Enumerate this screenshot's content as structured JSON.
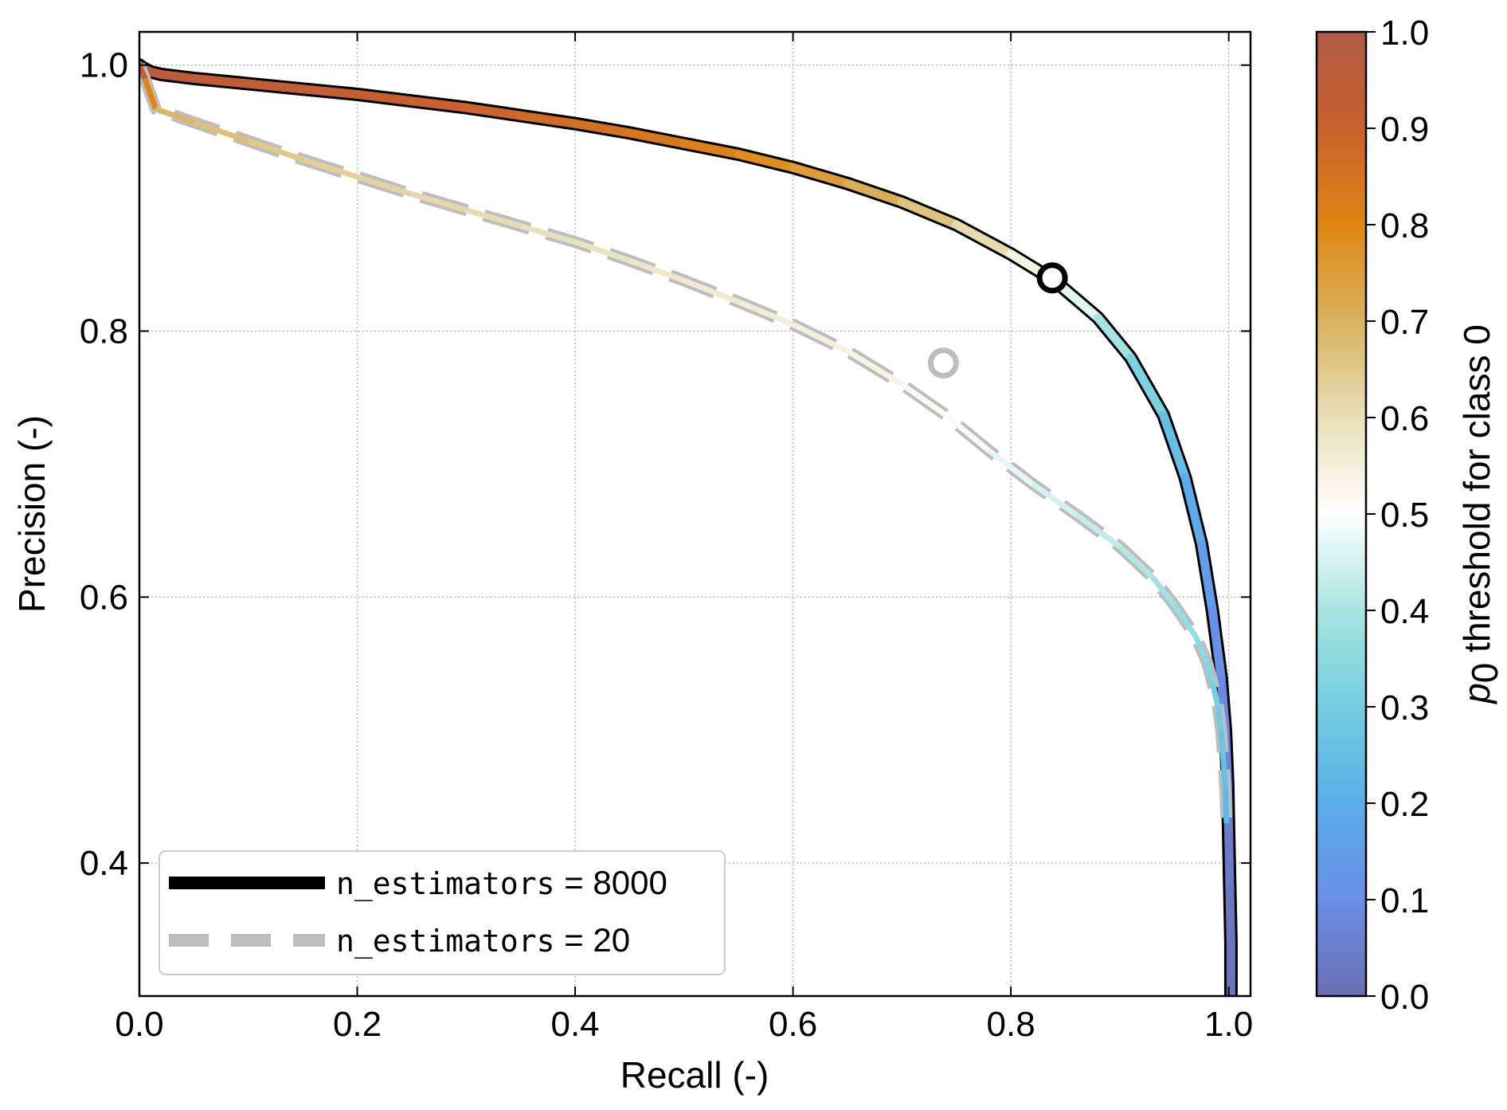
{
  "chart_data": {
    "type": "line",
    "xlabel": "Recall (-)",
    "ylabel": "Precision (-)",
    "xlim": [
      0.0,
      1.02
    ],
    "ylim": [
      0.3,
      1.025
    ],
    "grid": true,
    "x_ticks": [
      "0.0",
      "0.2",
      "0.4",
      "0.6",
      "0.8",
      "1.0"
    ],
    "y_ticks": [
      "0.4",
      "0.6",
      "0.8",
      "1.0"
    ],
    "legend": {
      "placement": "lower-left",
      "entries": [
        {
          "mono": "n_estimators",
          "suffix": " = 8000",
          "style": "solid",
          "color": "#000000"
        },
        {
          "mono": "n_estimators",
          "suffix": " = 20",
          "style": "dashed",
          "color": "#bdbdbd"
        }
      ]
    },
    "colorbar": {
      "label_p": "p",
      "label_sub": "0",
      "label_rest": " threshold for class 0",
      "ticks": [
        "0.0",
        "0.1",
        "0.2",
        "0.3",
        "0.4",
        "0.5",
        "0.6",
        "0.7",
        "0.8",
        "0.9",
        "1.0"
      ],
      "colors": [
        "#6a70b0",
        "#6a8de8",
        "#5aaee8",
        "#72cde0",
        "#a8e4e0",
        "#ffffff",
        "#e8dfb8",
        "#d9b25f",
        "#df8614",
        "#c9602e",
        "#b05a44"
      ]
    },
    "series": [
      {
        "name": "n_estimators = 8000",
        "style": "solid",
        "x": [
          0.0,
          0.003,
          0.01,
          0.02,
          0.05,
          0.1,
          0.15,
          0.2,
          0.25,
          0.3,
          0.35,
          0.4,
          0.45,
          0.5,
          0.55,
          0.6,
          0.65,
          0.7,
          0.75,
          0.8,
          0.84,
          0.88,
          0.91,
          0.94,
          0.96,
          0.975,
          0.985,
          0.993,
          0.997,
          0.999,
          1.0,
          1.001,
          1.002,
          1.002
        ],
        "y": [
          1.0,
          0.998,
          0.995,
          0.993,
          0.99,
          0.986,
          0.982,
          0.978,
          0.973,
          0.968,
          0.962,
          0.956,
          0.949,
          0.941,
          0.933,
          0.923,
          0.911,
          0.897,
          0.88,
          0.858,
          0.838,
          0.81,
          0.78,
          0.737,
          0.69,
          0.64,
          0.59,
          0.54,
          0.5,
          0.46,
          0.42,
          0.38,
          0.34,
          0.3
        ],
        "threshold": [
          1.0,
          0.99,
          0.97,
          0.96,
          0.95,
          0.94,
          0.93,
          0.92,
          0.91,
          0.895,
          0.88,
          0.865,
          0.85,
          0.83,
          0.8,
          0.77,
          0.73,
          0.69,
          0.64,
          0.58,
          0.5,
          0.43,
          0.36,
          0.28,
          0.22,
          0.17,
          0.13,
          0.1,
          0.08,
          0.06,
          0.04,
          0.03,
          0.02,
          0.01
        ]
      },
      {
        "name": "n_estimators = 20",
        "style": "dashed",
        "x": [
          0.0,
          0.005,
          0.015,
          0.05,
          0.1,
          0.15,
          0.2,
          0.25,
          0.3,
          0.35,
          0.4,
          0.45,
          0.5,
          0.55,
          0.6,
          0.65,
          0.7,
          0.74,
          0.78,
          0.82,
          0.86,
          0.9,
          0.93,
          0.95,
          0.97,
          0.98,
          0.985,
          0.99,
          0.993,
          0.995,
          0.997,
          0.998
        ],
        "y": [
          1.0,
          0.99,
          0.967,
          0.957,
          0.943,
          0.929,
          0.916,
          0.903,
          0.891,
          0.879,
          0.867,
          0.853,
          0.838,
          0.822,
          0.805,
          0.785,
          0.76,
          0.737,
          0.71,
          0.685,
          0.662,
          0.638,
          0.615,
          0.594,
          0.57,
          0.551,
          0.536,
          0.518,
          0.5,
          0.478,
          0.455,
          0.43
        ],
        "threshold": [
          1.0,
          0.9,
          0.7,
          0.68,
          0.66,
          0.64,
          0.63,
          0.62,
          0.61,
          0.6,
          0.59,
          0.58,
          0.57,
          0.56,
          0.55,
          0.54,
          0.53,
          0.5,
          0.48,
          0.46,
          0.44,
          0.42,
          0.4,
          0.38,
          0.36,
          0.34,
          0.32,
          0.3,
          0.28,
          0.26,
          0.24,
          0.22
        ]
      }
    ],
    "markers": [
      {
        "series": "n_estimators = 8000",
        "x": 0.838,
        "y": 0.84,
        "color": "#000000"
      },
      {
        "series": "n_estimators = 20",
        "x": 0.738,
        "y": 0.776,
        "color": "#bdbdbd"
      }
    ]
  }
}
